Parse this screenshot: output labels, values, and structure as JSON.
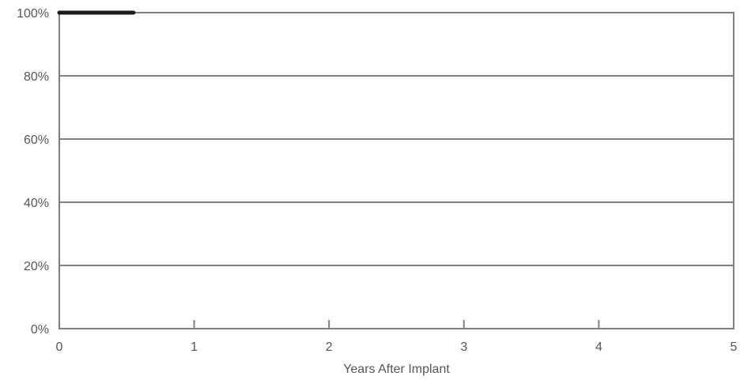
{
  "chart_data": {
    "type": "line",
    "title": "",
    "xlabel": "Years After Implant",
    "ylabel": "",
    "xlim": [
      0,
      5
    ],
    "ylim": [
      0,
      100
    ],
    "x_ticks": [
      {
        "value": 0,
        "label": "0"
      },
      {
        "value": 1,
        "label": "1"
      },
      {
        "value": 2,
        "label": "2"
      },
      {
        "value": 3,
        "label": "3"
      },
      {
        "value": 4,
        "label": "4"
      },
      {
        "value": 5,
        "label": "5"
      }
    ],
    "y_ticks": [
      {
        "value": 0,
        "label": "0%"
      },
      {
        "value": 20,
        "label": "20%"
      },
      {
        "value": 40,
        "label": "40%"
      },
      {
        "value": 60,
        "label": "60%"
      },
      {
        "value": 80,
        "label": "80%"
      },
      {
        "value": 100,
        "label": "100%"
      }
    ],
    "grid": true,
    "series": [
      {
        "color": "#1a1a1a",
        "x": [
          0,
          0.55
        ],
        "y": [
          100,
          100
        ]
      }
    ],
    "colors": {
      "frame": "#7f7f7f",
      "grid": "#7f7f7f",
      "text": "#555555"
    }
  }
}
